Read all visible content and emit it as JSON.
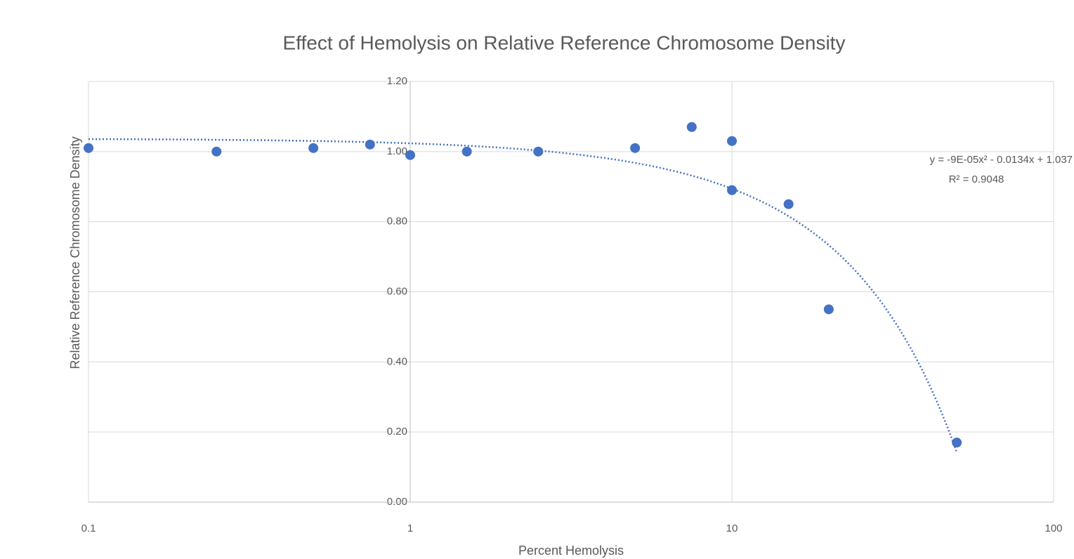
{
  "chart_data": {
    "type": "scatter",
    "title": "Effect of Hemolysis on Relative Reference Chromosome Density",
    "x_label": "Percent Hemolysis",
    "y_label": "Relative Reference Chromosome Density",
    "x": [
      0.1,
      0.25,
      0.5,
      0.75,
      1,
      1.5,
      2.5,
      5,
      7.5,
      10,
      10,
      15,
      20,
      50
    ],
    "series": [
      {
        "name": "Relative Reference Chromosome Density",
        "color": "#4472c4",
        "values": [
          1.01,
          1.0,
          1.01,
          1.02,
          0.99,
          1.0,
          1.0,
          1.01,
          1.07,
          1.03,
          0.89,
          0.85,
          0.55,
          0.17
        ]
      }
    ],
    "xscale": "log",
    "xlim": [
      0.1,
      100
    ],
    "xticks": [
      0.1,
      1,
      10,
      100
    ],
    "ylim": [
      0,
      1.2
    ],
    "yticks": [
      {
        "value": 0,
        "label": "0.00"
      },
      {
        "value": 0.2,
        "label": "0.20"
      },
      {
        "value": 0.4,
        "label": "0.40"
      },
      {
        "value": 0.6,
        "label": "0.60"
      },
      {
        "value": 0.8,
        "label": "0.80"
      },
      {
        "value": 1,
        "label": "1.00"
      },
      {
        "value": 1.2,
        "label": "1.20"
      }
    ],
    "yaxis_at": 1,
    "grid": true,
    "trendline": {
      "type": "polynomial",
      "coefficients": [
        -9e-05,
        -0.0134,
        1.037
      ],
      "color": "#4472c4",
      "style": "dotted",
      "equation": "y = -9E-05x² - 0.0134x + 1.037",
      "r_squared": "R² = 0.9048"
    }
  }
}
